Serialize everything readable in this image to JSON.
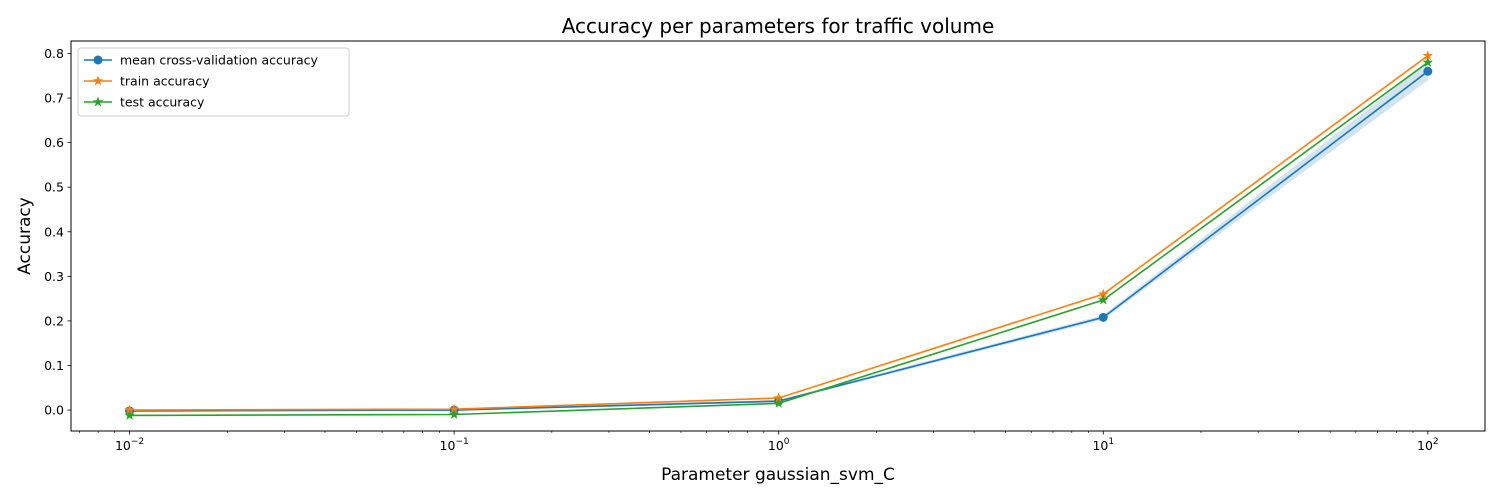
{
  "chart_data": {
    "type": "line",
    "title": "Accuracy per parameters for traffic volume",
    "xlabel": "Parameter gaussian_svm_C",
    "ylabel": "Accuracy",
    "xscale": "log",
    "x": [
      0.01,
      0.1,
      1,
      10,
      100
    ],
    "xlim": [
      0.0066,
      150
    ],
    "ylim": [
      -0.047,
      0.828
    ],
    "x_ticks": [
      {
        "value": 0.01,
        "base": "10",
        "exp": "−2"
      },
      {
        "value": 0.1,
        "base": "10",
        "exp": "−1"
      },
      {
        "value": 1,
        "base": "10",
        "exp": "0"
      },
      {
        "value": 10,
        "base": "10",
        "exp": "1"
      },
      {
        "value": 100,
        "base": "10",
        "exp": "2"
      }
    ],
    "y_ticks": [
      {
        "value": 0.0,
        "label": "0.0"
      },
      {
        "value": 0.1,
        "label": "0.1"
      },
      {
        "value": 0.2,
        "label": "0.2"
      },
      {
        "value": 0.3,
        "label": "0.3"
      },
      {
        "value": 0.4,
        "label": "0.4"
      },
      {
        "value": 0.5,
        "label": "0.5"
      },
      {
        "value": 0.6,
        "label": "0.6"
      },
      {
        "value": 0.7,
        "label": "0.7"
      },
      {
        "value": 0.8,
        "label": "0.8"
      }
    ],
    "grid": false,
    "legend_position": "top-left",
    "series": [
      {
        "name": "mean cross-validation accuracy",
        "color": "#1f77b4",
        "marker": "circle",
        "values": [
          -0.002,
          0.0,
          0.02,
          0.208,
          0.76
        ],
        "band_lower": [
          -0.004,
          -0.002,
          0.017,
          0.203,
          0.74
        ],
        "band_upper": [
          0.0,
          0.002,
          0.023,
          0.213,
          0.78
        ],
        "band_color": "#1f77b4"
      },
      {
        "name": "train accuracy",
        "color": "#ff7f0e",
        "marker": "star",
        "values": [
          0.0,
          0.002,
          0.027,
          0.26,
          0.795
        ]
      },
      {
        "name": "test accuracy",
        "color": "#2ca02c",
        "marker": "star",
        "values": [
          -0.012,
          -0.01,
          0.015,
          0.247,
          0.78
        ]
      }
    ]
  }
}
